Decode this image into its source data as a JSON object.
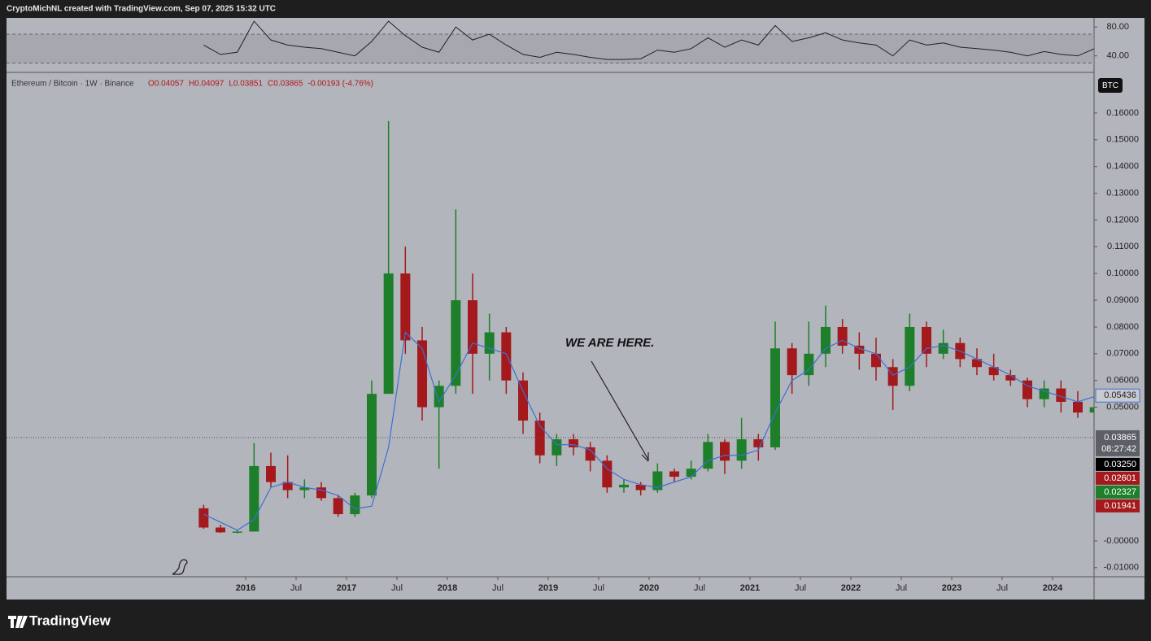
{
  "header": {
    "credit": "CryptoMichNL created with TradingView.com, Sep 07, 2025 15:32 UTC"
  },
  "footer": {
    "brand": "TradingView"
  },
  "chart_data": {
    "type": "candlestick",
    "symbol": "Ethereum / Bitcoin · 1W · Binance",
    "ohlc_legend": [
      "O0.04057",
      "H0.04097",
      "L0.03851",
      "C0.03865",
      "-0.00193 (-4.76%)"
    ],
    "annotation": "WE ARE HERE.",
    "currency": "BTC",
    "x": [
      "2015-08",
      "2015-10",
      "2015-12",
      "2016-02",
      "2016-04",
      "2016-06",
      "2016-08",
      "2016-10",
      "2016-12",
      "2017-02",
      "2017-04",
      "2017-06",
      "2017-08",
      "2017-10",
      "2017-12",
      "2018-02",
      "2018-04",
      "2018-06",
      "2018-08",
      "2018-10",
      "2018-12",
      "2019-02",
      "2019-04",
      "2019-06",
      "2019-08",
      "2019-10",
      "2019-12",
      "2020-02",
      "2020-04",
      "2020-06",
      "2020-08",
      "2020-10",
      "2020-12",
      "2021-02",
      "2021-04",
      "2021-06",
      "2021-08",
      "2021-10",
      "2021-12",
      "2022-02",
      "2022-04",
      "2022-06",
      "2022-08",
      "2022-10",
      "2022-12",
      "2023-02",
      "2023-04",
      "2023-06",
      "2023-08",
      "2023-10",
      "2023-12",
      "2024-02",
      "2024-04",
      "2024-06"
    ],
    "open": [
      0.0122,
      0.005,
      0.0032,
      0.0035,
      0.028,
      0.022,
      0.019,
      0.02,
      0.016,
      0.01,
      0.017,
      0.055,
      0.1,
      0.075,
      0.05,
      0.058,
      0.09,
      0.07,
      0.078,
      0.06,
      0.045,
      0.032,
      0.038,
      0.035,
      0.03,
      0.02,
      0.021,
      0.019,
      0.026,
      0.024,
      0.027,
      0.037,
      0.03,
      0.038,
      0.035,
      0.072,
      0.062,
      0.07,
      0.08,
      0.073,
      0.07,
      0.065,
      0.058,
      0.08,
      0.07,
      0.074,
      0.068,
      0.065,
      0.062,
      0.06,
      0.053,
      0.057,
      0.052,
      0.048
    ],
    "high": [
      0.0135,
      0.006,
      0.004,
      0.0366,
      0.033,
      0.032,
      0.023,
      0.022,
      0.017,
      0.018,
      0.06,
      0.157,
      0.11,
      0.08,
      0.06,
      0.124,
      0.1,
      0.085,
      0.08,
      0.063,
      0.048,
      0.04,
      0.04,
      0.037,
      0.032,
      0.023,
      0.022,
      0.029,
      0.027,
      0.03,
      0.04,
      0.038,
      0.046,
      0.04,
      0.082,
      0.074,
      0.082,
      0.088,
      0.083,
      0.078,
      0.076,
      0.068,
      0.085,
      0.082,
      0.079,
      0.076,
      0.072,
      0.07,
      0.064,
      0.061,
      0.06,
      0.06,
      0.056,
      0.057
    ],
    "low": [
      0.0045,
      0.003,
      0.0028,
      0.0035,
      0.02,
      0.016,
      0.016,
      0.015,
      0.009,
      0.009,
      0.016,
      0.055,
      0.07,
      0.045,
      0.027,
      0.055,
      0.055,
      0.06,
      0.055,
      0.04,
      0.029,
      0.028,
      0.032,
      0.026,
      0.018,
      0.018,
      0.017,
      0.018,
      0.022,
      0.023,
      0.026,
      0.025,
      0.027,
      0.03,
      0.034,
      0.055,
      0.058,
      0.065,
      0.07,
      0.064,
      0.06,
      0.049,
      0.056,
      0.065,
      0.068,
      0.065,
      0.062,
      0.06,
      0.058,
      0.05,
      0.05,
      0.048,
      0.046,
      0.045
    ],
    "close": [
      0.005,
      0.0032,
      0.0035,
      0.028,
      0.022,
      0.019,
      0.02,
      0.016,
      0.01,
      0.017,
      0.055,
      0.1,
      0.075,
      0.05,
      0.058,
      0.09,
      0.07,
      0.078,
      0.06,
      0.045,
      0.032,
      0.038,
      0.035,
      0.03,
      0.02,
      0.021,
      0.019,
      0.026,
      0.024,
      0.027,
      0.037,
      0.03,
      0.038,
      0.035,
      0.072,
      0.062,
      0.07,
      0.08,
      0.073,
      0.07,
      0.065,
      0.058,
      0.08,
      0.07,
      0.074,
      0.068,
      0.065,
      0.062,
      0.06,
      0.053,
      0.057,
      0.052,
      0.048,
      0.05
    ],
    "ma": [
      0.01,
      0.007,
      0.004,
      0.008,
      0.02,
      0.022,
      0.02,
      0.019,
      0.017,
      0.012,
      0.013,
      0.035,
      0.078,
      0.072,
      0.052,
      0.062,
      0.074,
      0.072,
      0.07,
      0.056,
      0.043,
      0.036,
      0.036,
      0.034,
      0.027,
      0.023,
      0.021,
      0.02,
      0.022,
      0.024,
      0.03,
      0.032,
      0.032,
      0.034,
      0.048,
      0.06,
      0.064,
      0.072,
      0.075,
      0.072,
      0.07,
      0.062,
      0.065,
      0.072,
      0.073,
      0.071,
      0.068,
      0.065,
      0.062,
      0.058,
      0.056,
      0.054,
      0.052,
      0.054
    ],
    "rsi": [
      55,
      42,
      45,
      88,
      62,
      55,
      52,
      50,
      45,
      40,
      60,
      88,
      68,
      52,
      45,
      80,
      62,
      70,
      55,
      42,
      38,
      45,
      42,
      38,
      35,
      35,
      36,
      48,
      45,
      50,
      65,
      52,
      62,
      55,
      82,
      60,
      65,
      72,
      62,
      58,
      55,
      40,
      62,
      55,
      58,
      52,
      50,
      48,
      45,
      40,
      46,
      42,
      40,
      50
    ],
    "colors": {
      "up": "#1d7f2a",
      "down": "#a3191c",
      "ma": "#3d6fd6",
      "rsi": "#222222"
    },
    "ylim": [
      -0.0134,
      0.1752
    ],
    "yticks": [
      {
        "value": 0.16,
        "label": "0.16000"
      },
      {
        "value": 0.15,
        "label": "0.15000"
      },
      {
        "value": 0.14,
        "label": "0.14000"
      },
      {
        "value": 0.13,
        "label": "0.13000"
      },
      {
        "value": 0.12,
        "label": "0.12000"
      },
      {
        "value": 0.11,
        "label": "0.11000"
      },
      {
        "value": 0.1,
        "label": "0.10000"
      },
      {
        "value": 0.09,
        "label": "0.09000"
      },
      {
        "value": 0.08,
        "label": "0.08000"
      },
      {
        "value": 0.07,
        "label": "0.07000"
      },
      {
        "value": 0.06,
        "label": "0.06000"
      },
      {
        "value": 0.05,
        "label": "0.05000"
      },
      {
        "value": 0,
        "label": "-0.00000"
      },
      {
        "value": -0.01,
        "label": "-0.01000"
      }
    ],
    "rsi_lim": [
      17.1,
      92.6
    ],
    "rsi_ticks": [
      {
        "value": 80,
        "label": "80.00"
      },
      {
        "value": 40,
        "label": "40.00"
      }
    ],
    "rsi_band": [
      30,
      70
    ],
    "xticks": [
      {
        "value": "2016-01",
        "label": "2016"
      },
      {
        "value": "2016-07",
        "label": "Jul"
      },
      {
        "value": "2017-01",
        "label": "2017"
      },
      {
        "value": "2017-07",
        "label": "Jul"
      },
      {
        "value": "2018-01",
        "label": "2018"
      },
      {
        "value": "2018-07",
        "label": "Jul"
      },
      {
        "value": "2019-01",
        "label": "2019"
      },
      {
        "value": "2019-07",
        "label": "Jul"
      },
      {
        "value": "2020-01",
        "label": "2020"
      },
      {
        "value": "2020-07",
        "label": "Jul"
      },
      {
        "value": "2021-01",
        "label": "2021"
      },
      {
        "value": "2021-07",
        "label": "Jul"
      },
      {
        "value": "2022-01",
        "label": "2022"
      },
      {
        "value": "2022-07",
        "label": "Jul"
      },
      {
        "value": "2023-01",
        "label": "2023"
      },
      {
        "value": "2023-07",
        "label": "Jul"
      },
      {
        "value": "2024-01",
        "label": "2024"
      }
    ],
    "ma_label": {
      "value": 0.05436,
      "label": "0.05436"
    },
    "current_price": {
      "value": 0.03865,
      "label": "0.03865",
      "countdown": "08:27:42"
    },
    "price_labels": [
      {
        "value": 0.0325,
        "label": "0.03250",
        "color": "#000000"
      },
      {
        "value": 0.02601,
        "label": "0.02601",
        "color": "#a3191c"
      },
      {
        "value": 0.02327,
        "label": "0.02327",
        "color": "#1d7f2a"
      },
      {
        "value": 0.01941,
        "label": "0.01941",
        "color": "#a3191c"
      }
    ]
  }
}
